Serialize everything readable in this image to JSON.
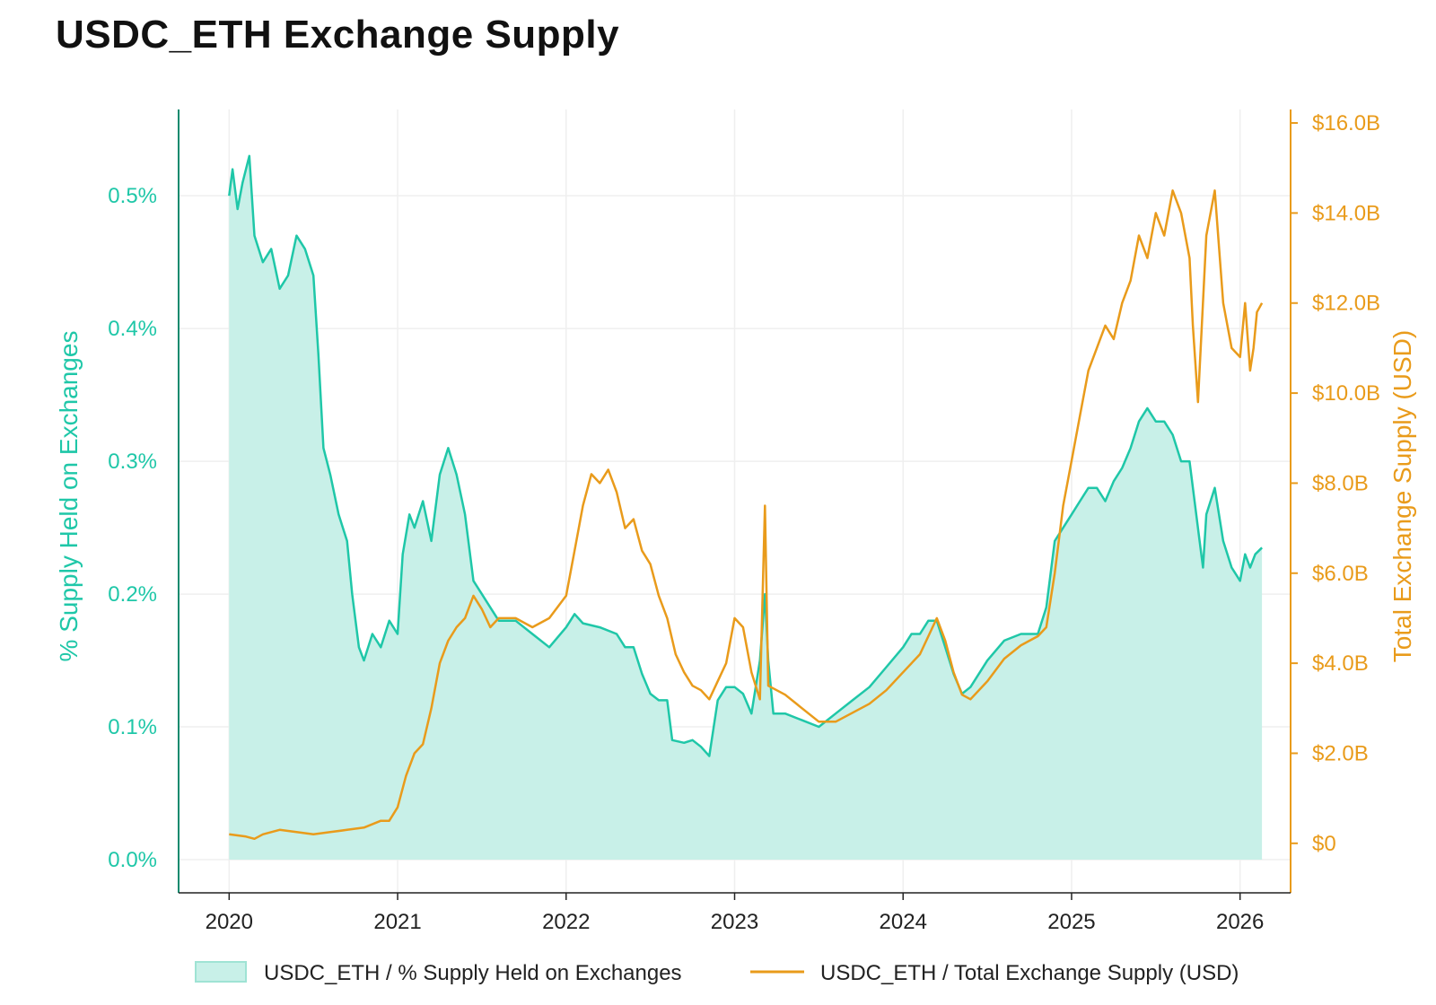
{
  "title": "USDC_ETH Exchange Supply",
  "colors": {
    "pct": "#1fc7a8",
    "pct_fill": "#c8f0e8",
    "usd": "#e99b1b",
    "grid": "#efefef",
    "left_axis": "#0f8a6e"
  },
  "chart_data": {
    "type": "line",
    "title": "USDC_ETH Exchange Supply",
    "x_ticks": [
      {
        "value": 2020,
        "label": "2020"
      },
      {
        "value": 2021,
        "label": "2021"
      },
      {
        "value": 2022,
        "label": "2022"
      },
      {
        "value": 2023,
        "label": "2023"
      },
      {
        "value": 2024,
        "label": "2024"
      },
      {
        "value": 2025,
        "label": "2025"
      },
      {
        "value": 2026,
        "label": "2026"
      }
    ],
    "xlim": [
      2019.7,
      2026.3
    ],
    "y_left": {
      "label": "% Supply Held on Exchanges",
      "lim": [
        -0.025,
        0.565
      ],
      "ticks": [
        {
          "value": 0.0,
          "label": "0.0%"
        },
        {
          "value": 0.1,
          "label": "0.1%"
        },
        {
          "value": 0.2,
          "label": "0.2%"
        },
        {
          "value": 0.3,
          "label": "0.3%"
        },
        {
          "value": 0.4,
          "label": "0.4%"
        },
        {
          "value": 0.5,
          "label": "0.5%"
        }
      ]
    },
    "y_right": {
      "label": "Total Exchange Supply (USD)",
      "lim": [
        -1.1,
        16.3
      ],
      "ticks": [
        {
          "value": 0,
          "label": "$0"
        },
        {
          "value": 2,
          "label": "$2.0B"
        },
        {
          "value": 4,
          "label": "$4.0B"
        },
        {
          "value": 6,
          "label": "$6.0B"
        },
        {
          "value": 8,
          "label": "$8.0B"
        },
        {
          "value": 10,
          "label": "$10.0B"
        },
        {
          "value": 12,
          "label": "$12.0B"
        },
        {
          "value": 14,
          "label": "$14.0B"
        },
        {
          "value": 16,
          "label": "$16.0B"
        }
      ]
    },
    "series": [
      {
        "name": "USDC_ETH / % Supply Held on Exchanges",
        "axis": "left",
        "style": "area",
        "points": [
          [
            2020.0,
            0.5
          ],
          [
            2020.02,
            0.52
          ],
          [
            2020.05,
            0.49
          ],
          [
            2020.08,
            0.51
          ],
          [
            2020.12,
            0.53
          ],
          [
            2020.15,
            0.47
          ],
          [
            2020.2,
            0.45
          ],
          [
            2020.25,
            0.46
          ],
          [
            2020.3,
            0.43
          ],
          [
            2020.35,
            0.44
          ],
          [
            2020.4,
            0.47
          ],
          [
            2020.45,
            0.46
          ],
          [
            2020.5,
            0.44
          ],
          [
            2020.53,
            0.38
          ],
          [
            2020.56,
            0.31
          ],
          [
            2020.6,
            0.29
          ],
          [
            2020.65,
            0.26
          ],
          [
            2020.7,
            0.24
          ],
          [
            2020.73,
            0.2
          ],
          [
            2020.77,
            0.16
          ],
          [
            2020.8,
            0.15
          ],
          [
            2020.85,
            0.17
          ],
          [
            2020.9,
            0.16
          ],
          [
            2020.95,
            0.18
          ],
          [
            2021.0,
            0.17
          ],
          [
            2021.03,
            0.23
          ],
          [
            2021.07,
            0.26
          ],
          [
            2021.1,
            0.25
          ],
          [
            2021.15,
            0.27
          ],
          [
            2021.2,
            0.24
          ],
          [
            2021.25,
            0.29
          ],
          [
            2021.3,
            0.31
          ],
          [
            2021.35,
            0.29
          ],
          [
            2021.4,
            0.26
          ],
          [
            2021.45,
            0.21
          ],
          [
            2021.5,
            0.2
          ],
          [
            2021.55,
            0.19
          ],
          [
            2021.6,
            0.18
          ],
          [
            2021.7,
            0.18
          ],
          [
            2021.8,
            0.17
          ],
          [
            2021.9,
            0.16
          ],
          [
            2022.0,
            0.175
          ],
          [
            2022.05,
            0.185
          ],
          [
            2022.1,
            0.178
          ],
          [
            2022.2,
            0.175
          ],
          [
            2022.3,
            0.17
          ],
          [
            2022.35,
            0.16
          ],
          [
            2022.4,
            0.16
          ],
          [
            2022.45,
            0.14
          ],
          [
            2022.5,
            0.125
          ],
          [
            2022.55,
            0.12
          ],
          [
            2022.6,
            0.12
          ],
          [
            2022.63,
            0.09
          ],
          [
            2022.7,
            0.088
          ],
          [
            2022.75,
            0.09
          ],
          [
            2022.8,
            0.085
          ],
          [
            2022.85,
            0.078
          ],
          [
            2022.9,
            0.12
          ],
          [
            2022.95,
            0.13
          ],
          [
            2023.0,
            0.13
          ],
          [
            2023.05,
            0.125
          ],
          [
            2023.1,
            0.11
          ],
          [
            2023.15,
            0.15
          ],
          [
            2023.18,
            0.2
          ],
          [
            2023.2,
            0.15
          ],
          [
            2023.23,
            0.11
          ],
          [
            2023.3,
            0.11
          ],
          [
            2023.4,
            0.105
          ],
          [
            2023.5,
            0.1
          ],
          [
            2023.6,
            0.11
          ],
          [
            2023.7,
            0.12
          ],
          [
            2023.8,
            0.13
          ],
          [
            2023.9,
            0.145
          ],
          [
            2024.0,
            0.16
          ],
          [
            2024.05,
            0.17
          ],
          [
            2024.1,
            0.17
          ],
          [
            2024.15,
            0.18
          ],
          [
            2024.2,
            0.18
          ],
          [
            2024.25,
            0.16
          ],
          [
            2024.3,
            0.14
          ],
          [
            2024.35,
            0.125
          ],
          [
            2024.4,
            0.13
          ],
          [
            2024.5,
            0.15
          ],
          [
            2024.6,
            0.165
          ],
          [
            2024.7,
            0.17
          ],
          [
            2024.8,
            0.17
          ],
          [
            2024.85,
            0.19
          ],
          [
            2024.9,
            0.24
          ],
          [
            2024.95,
            0.25
          ],
          [
            2025.0,
            0.26
          ],
          [
            2025.05,
            0.27
          ],
          [
            2025.1,
            0.28
          ],
          [
            2025.15,
            0.28
          ],
          [
            2025.2,
            0.27
          ],
          [
            2025.25,
            0.285
          ],
          [
            2025.3,
            0.295
          ],
          [
            2025.35,
            0.31
          ],
          [
            2025.4,
            0.33
          ],
          [
            2025.45,
            0.34
          ],
          [
            2025.5,
            0.33
          ],
          [
            2025.55,
            0.33
          ],
          [
            2025.6,
            0.32
          ],
          [
            2025.65,
            0.3
          ],
          [
            2025.7,
            0.3
          ],
          [
            2025.73,
            0.27
          ],
          [
            2025.76,
            0.24
          ],
          [
            2025.78,
            0.22
          ],
          [
            2025.8,
            0.26
          ],
          [
            2025.85,
            0.28
          ],
          [
            2025.9,
            0.24
          ],
          [
            2025.95,
            0.22
          ],
          [
            2026.0,
            0.21
          ],
          [
            2026.03,
            0.23
          ],
          [
            2026.06,
            0.22
          ],
          [
            2026.09,
            0.23
          ],
          [
            2026.13,
            0.235
          ]
        ]
      },
      {
        "name": "USDC_ETH / Total Exchange Supply (USD)",
        "axis": "right",
        "style": "line",
        "points": [
          [
            2020.0,
            0.2
          ],
          [
            2020.1,
            0.15
          ],
          [
            2020.15,
            0.1
          ],
          [
            2020.2,
            0.2
          ],
          [
            2020.3,
            0.3
          ],
          [
            2020.4,
            0.25
          ],
          [
            2020.5,
            0.2
          ],
          [
            2020.6,
            0.25
          ],
          [
            2020.7,
            0.3
          ],
          [
            2020.8,
            0.35
          ],
          [
            2020.9,
            0.5
          ],
          [
            2020.95,
            0.5
          ],
          [
            2021.0,
            0.8
          ],
          [
            2021.05,
            1.5
          ],
          [
            2021.1,
            2.0
          ],
          [
            2021.15,
            2.2
          ],
          [
            2021.2,
            3.0
          ],
          [
            2021.25,
            4.0
          ],
          [
            2021.3,
            4.5
          ],
          [
            2021.35,
            4.8
          ],
          [
            2021.4,
            5.0
          ],
          [
            2021.45,
            5.5
          ],
          [
            2021.5,
            5.2
          ],
          [
            2021.55,
            4.8
          ],
          [
            2021.6,
            5.0
          ],
          [
            2021.7,
            5.0
          ],
          [
            2021.8,
            4.8
          ],
          [
            2021.9,
            5.0
          ],
          [
            2022.0,
            5.5
          ],
          [
            2022.05,
            6.5
          ],
          [
            2022.1,
            7.5
          ],
          [
            2022.15,
            8.2
          ],
          [
            2022.2,
            8.0
          ],
          [
            2022.25,
            8.3
          ],
          [
            2022.3,
            7.8
          ],
          [
            2022.35,
            7.0
          ],
          [
            2022.4,
            7.2
          ],
          [
            2022.45,
            6.5
          ],
          [
            2022.5,
            6.2
          ],
          [
            2022.55,
            5.5
          ],
          [
            2022.6,
            5.0
          ],
          [
            2022.65,
            4.2
          ],
          [
            2022.7,
            3.8
          ],
          [
            2022.75,
            3.5
          ],
          [
            2022.8,
            3.4
          ],
          [
            2022.85,
            3.2
          ],
          [
            2022.9,
            3.6
          ],
          [
            2022.95,
            4.0
          ],
          [
            2023.0,
            5.0
          ],
          [
            2023.05,
            4.8
          ],
          [
            2023.1,
            3.8
          ],
          [
            2023.15,
            3.2
          ],
          [
            2023.18,
            7.5
          ],
          [
            2023.2,
            3.5
          ],
          [
            2023.25,
            3.4
          ],
          [
            2023.3,
            3.3
          ],
          [
            2023.4,
            3.0
          ],
          [
            2023.5,
            2.7
          ],
          [
            2023.6,
            2.7
          ],
          [
            2023.7,
            2.9
          ],
          [
            2023.8,
            3.1
          ],
          [
            2023.9,
            3.4
          ],
          [
            2024.0,
            3.8
          ],
          [
            2024.1,
            4.2
          ],
          [
            2024.15,
            4.6
          ],
          [
            2024.2,
            5.0
          ],
          [
            2024.25,
            4.5
          ],
          [
            2024.3,
            3.8
          ],
          [
            2024.35,
            3.3
          ],
          [
            2024.4,
            3.2
          ],
          [
            2024.5,
            3.6
          ],
          [
            2024.6,
            4.1
          ],
          [
            2024.7,
            4.4
          ],
          [
            2024.8,
            4.6
          ],
          [
            2024.85,
            4.8
          ],
          [
            2024.9,
            6.0
          ],
          [
            2024.95,
            7.5
          ],
          [
            2025.0,
            8.5
          ],
          [
            2025.05,
            9.5
          ],
          [
            2025.1,
            10.5
          ],
          [
            2025.15,
            11.0
          ],
          [
            2025.2,
            11.5
          ],
          [
            2025.25,
            11.2
          ],
          [
            2025.3,
            12.0
          ],
          [
            2025.35,
            12.5
          ],
          [
            2025.4,
            13.5
          ],
          [
            2025.45,
            13.0
          ],
          [
            2025.5,
            14.0
          ],
          [
            2025.55,
            13.5
          ],
          [
            2025.6,
            14.5
          ],
          [
            2025.65,
            14.0
          ],
          [
            2025.7,
            13.0
          ],
          [
            2025.72,
            11.5
          ],
          [
            2025.75,
            9.8
          ],
          [
            2025.8,
            13.5
          ],
          [
            2025.85,
            14.5
          ],
          [
            2025.9,
            12.0
          ],
          [
            2025.95,
            11.0
          ],
          [
            2026.0,
            10.8
          ],
          [
            2026.03,
            12.0
          ],
          [
            2026.06,
            10.5
          ],
          [
            2026.08,
            11.0
          ],
          [
            2026.1,
            11.8
          ],
          [
            2026.13,
            12.0
          ]
        ]
      }
    ],
    "legend": {
      "position": "bottom",
      "items": [
        {
          "label": "USDC_ETH / % Supply Held on Exchanges",
          "style": "area"
        },
        {
          "label": "USDC_ETH / Total Exchange Supply (USD)",
          "style": "line"
        }
      ]
    }
  }
}
